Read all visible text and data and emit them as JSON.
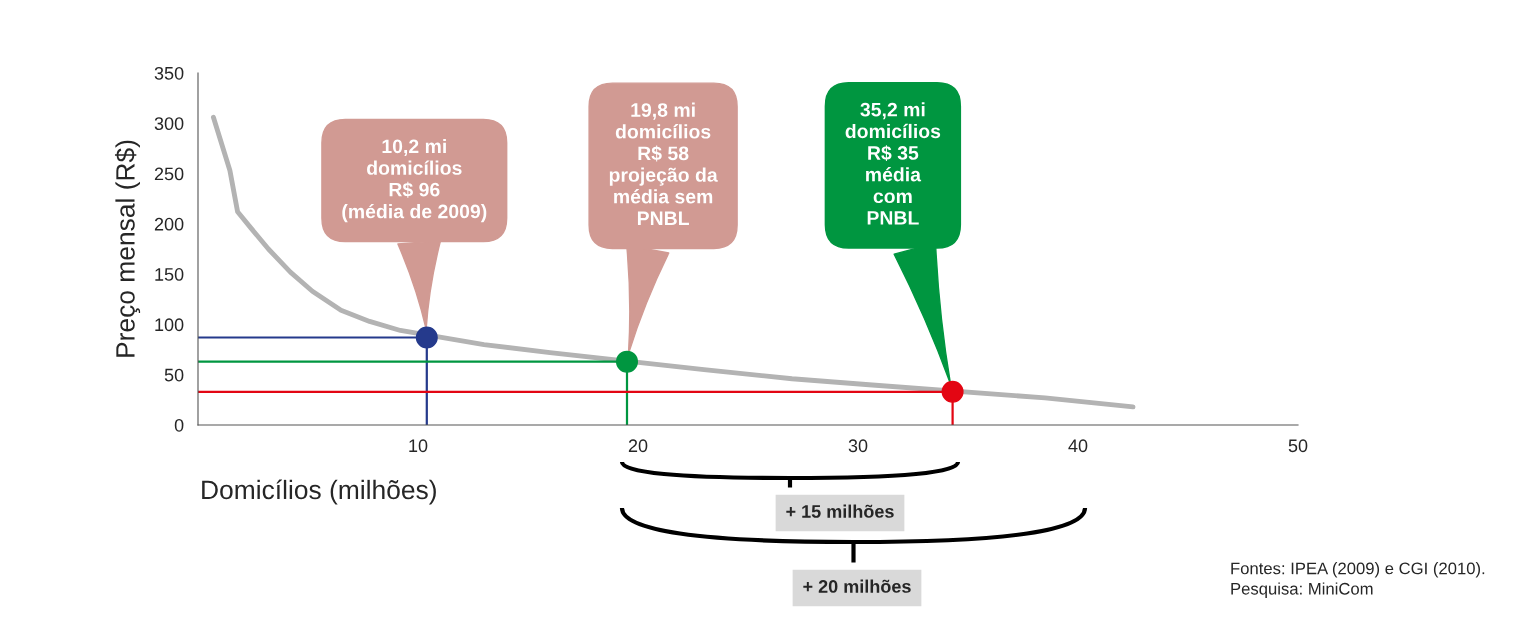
{
  "chart_data": {
    "type": "line",
    "xlabel": "Domicílios (milhões)",
    "ylabel": "Preço mensal (R$)",
    "xlim": [
      0,
      50
    ],
    "xticks": [
      10,
      20,
      30,
      40,
      50
    ],
    "ylim": [
      0,
      350
    ],
    "yticks": [
      0,
      50,
      100,
      150,
      200,
      250,
      300,
      350
    ],
    "grid": false,
    "legend": false,
    "series": [
      {
        "color": "#b3b3b3",
        "marker": "none",
        "x": [
          0.7,
          1.45,
          1.8,
          2.4,
          3.2,
          4.2,
          5.2,
          6.5,
          7.8,
          9.2,
          13,
          16,
          23,
          27,
          30.5,
          38.5,
          42.5
        ],
        "values": [
          306,
          253,
          212,
          196,
          175,
          152,
          133,
          114,
          103,
          94,
          80,
          72,
          55,
          46,
          40,
          27,
          18
        ]
      },
      {
        "color": "#253a8c",
        "marker": "none",
        "x": [
          0,
          10.4,
          10.4
        ],
        "values": [
          87,
          87,
          0
        ]
      },
      {
        "color": "#009640",
        "marker": "none",
        "x": [
          0,
          19.5,
          19.5
        ],
        "values": [
          63,
          63,
          0
        ]
      },
      {
        "color": "#e30613",
        "marker": "none",
        "x": [
          0,
          34.3,
          34.3
        ],
        "values": [
          33,
          33,
          0
        ]
      },
      {
        "type": "scatter",
        "marker": "circle",
        "x": [
          10.4,
          19.5,
          34.3
        ],
        "values": [
          87,
          63,
          33
        ],
        "colors": [
          "#253a8c",
          "#009640",
          "#e30613"
        ]
      }
    ],
    "annotations": [
      {
        "text": "10,2 mi\ndomicílios\nR$ 96\n(média de 2009)",
        "x": 10.4,
        "y": 87
      },
      {
        "text": "19,8 mi\ndomicílios\nR$ 58\nprojeção da\nmédia sem\nPNBL",
        "x": 19.5,
        "y": 63
      },
      {
        "text": "35,2 mi\ndomicílios\nR$ 35\nmédia\ncom\nPNBL",
        "x": 34.3,
        "y": 33
      },
      "+ 15 milhões",
      "+ 20 milhões",
      "Fontes: IPEA (2009) e CGI (2010).\nPesquisa: MiniCom"
    ]
  }
}
